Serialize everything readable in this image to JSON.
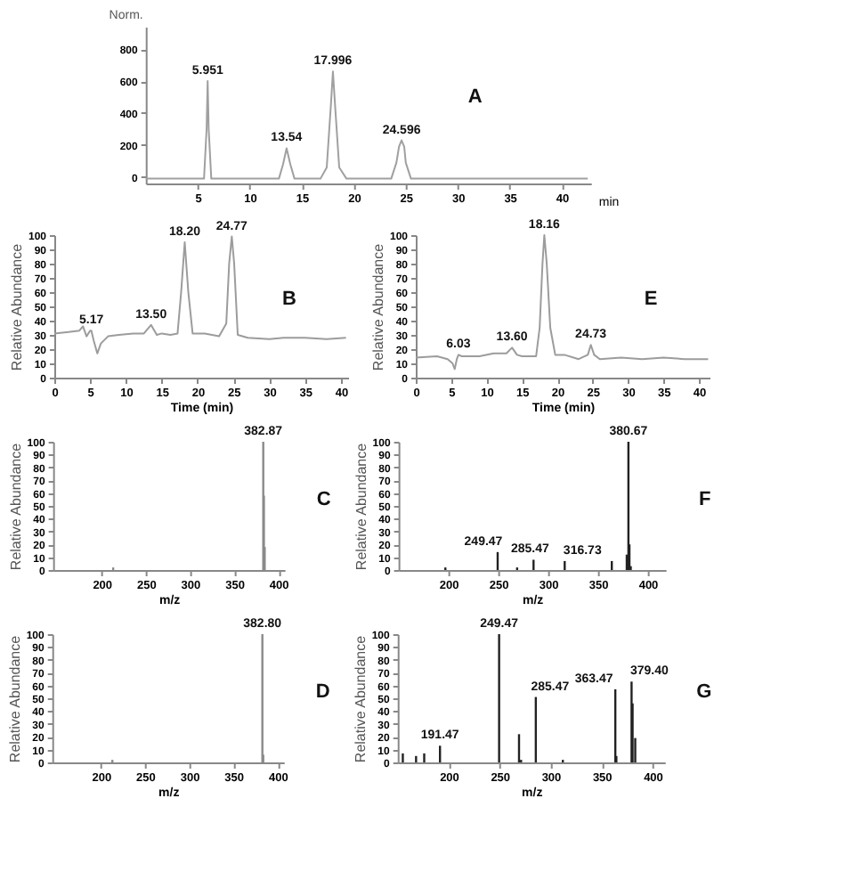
{
  "chart_data": [
    {
      "type": "line",
      "ylabel": "Norm.",
      "xlabel": "min",
      "xlim": [
        0,
        42.8
      ],
      "ylim": [
        -40,
        940
      ],
      "xticks": [
        5,
        10,
        15,
        20,
        25,
        30,
        35,
        40
      ],
      "yticks": [
        0,
        200,
        400,
        600,
        800
      ],
      "grid": false,
      "annotations": [
        "A",
        {
          "text": "5.951",
          "x": 5.951,
          "y": 600
        },
        {
          "text": "13.54",
          "x": 13.54,
          "y": 180
        },
        {
          "text": "17.996",
          "x": 17.996,
          "y": 660
        },
        {
          "text": "24.596",
          "x": 24.596,
          "y": 230
        }
      ],
      "series": [
        {
          "color": "#a0a0a0",
          "x": [
            0,
            5.0,
            5.6,
            5.85,
            5.951,
            6.05,
            6.3,
            7,
            12.8,
            13.2,
            13.54,
            13.9,
            14.3,
            16.8,
            17.4,
            17.8,
            17.996,
            18.2,
            18.6,
            19.3,
            23.6,
            24.1,
            24.35,
            24.596,
            24.85,
            25.0,
            25.5,
            42.5
          ],
          "values": [
            -10,
            -10,
            -10,
            300,
            600,
            300,
            -10,
            -10,
            -10,
            80,
            180,
            80,
            -10,
            -10,
            60,
            450,
            660,
            450,
            60,
            -10,
            -10,
            90,
            190,
            230,
            190,
            90,
            -10,
            -10
          ]
        }
      ]
    },
    {
      "type": "line",
      "ylabel": "Relative Abundance",
      "xlabel": "Time (min)",
      "xlim": [
        0,
        41
      ],
      "ylim": [
        0,
        100
      ],
      "xticks": [
        0,
        5,
        10,
        15,
        20,
        25,
        30,
        35,
        40
      ],
      "yticks": [
        0,
        10,
        20,
        30,
        40,
        50,
        60,
        70,
        80,
        90,
        100
      ],
      "grid": false,
      "annotations": [
        "B",
        {
          "text": "5.17",
          "x": 5.17,
          "y": 33
        },
        {
          "text": "13.50",
          "x": 13.5,
          "y": 37
        },
        {
          "text": "18.20",
          "x": 18.2,
          "y": 95
        },
        {
          "text": "24.77",
          "x": 24.77,
          "y": 99
        }
      ],
      "series": [
        {
          "color": "#9c9c9c",
          "x": [
            0,
            2,
            3.5,
            4.0,
            4.5,
            5.0,
            5.17,
            5.5,
            6.0,
            6.5,
            7.5,
            9,
            11,
            12.5,
            13.5,
            14.3,
            15,
            16.2,
            17.2,
            17.7,
            18.2,
            18.7,
            19.3,
            21,
            23,
            24.0,
            24.4,
            24.77,
            25.1,
            25.6,
            27,
            30,
            32,
            35,
            38,
            40.7
          ],
          "values": [
            31,
            32,
            33,
            36,
            29,
            33,
            33,
            26,
            17,
            24,
            29,
            30,
            31,
            31,
            37,
            30,
            31,
            30,
            31,
            60,
            95,
            60,
            31,
            31,
            29,
            38,
            80,
            99,
            80,
            30,
            28,
            27,
            28,
            28,
            27,
            28
          ]
        }
      ]
    },
    {
      "type": "line",
      "ylabel": "Relative Abundance",
      "xlabel": "Time (min)",
      "xlim": [
        0,
        41.5
      ],
      "ylim": [
        0,
        100
      ],
      "xticks": [
        0,
        5,
        10,
        15,
        20,
        25,
        30,
        35,
        40
      ],
      "yticks": [
        0,
        10,
        20,
        30,
        40,
        50,
        60,
        70,
        80,
        90,
        100
      ],
      "grid": false,
      "annotations": [
        "E",
        {
          "text": "6.03",
          "x": 6.03,
          "y": 16
        },
        {
          "text": "13.60",
          "x": 13.6,
          "y": 21
        },
        {
          "text": "18.16",
          "x": 18.16,
          "y": 100
        },
        {
          "text": "24.73",
          "x": 24.73,
          "y": 23
        }
      ],
      "series": [
        {
          "color": "#9c9c9c",
          "x": [
            0,
            3,
            4.5,
            5.2,
            5.5,
            5.8,
            6.03,
            6.5,
            9,
            11,
            12.8,
            13.6,
            14.3,
            15,
            17,
            17.5,
            17.9,
            18.16,
            18.5,
            19,
            19.7,
            21,
            23,
            24.3,
            24.73,
            25.2,
            26,
            29,
            32,
            35,
            38,
            41.3
          ],
          "values": [
            14,
            15,
            13,
            10,
            6,
            13,
            16,
            15,
            15,
            17,
            17,
            21,
            16,
            15,
            15,
            35,
            80,
            100,
            80,
            35,
            16,
            16,
            13,
            16,
            23,
            16,
            13,
            14,
            13,
            14,
            13,
            13
          ]
        }
      ]
    },
    {
      "type": "bar",
      "ylabel": "Relative Abundance",
      "xlabel": "m/z",
      "xlim": [
        145,
        407
      ],
      "ylim": [
        0,
        100
      ],
      "xticks": [
        200,
        250,
        300,
        350,
        400
      ],
      "yticks": [
        0,
        10,
        20,
        30,
        40,
        50,
        60,
        70,
        80,
        90,
        100
      ],
      "grid": false,
      "annotations": [
        "C",
        {
          "text": "382.87",
          "x": 382.87,
          "y": 100
        }
      ],
      "series": [
        {
          "color": "#8a8a8a",
          "x": [
            213,
            382.87,
            383.6,
            384.5
          ],
          "values": [
            2,
            100,
            58,
            18
          ]
        }
      ]
    },
    {
      "type": "bar",
      "ylabel": "Relative Abundance",
      "xlabel": "m/z",
      "xlim": [
        150,
        418
      ],
      "ylim": [
        0,
        100
      ],
      "xticks": [
        200,
        250,
        300,
        350,
        400
      ],
      "yticks": [
        0,
        10,
        20,
        30,
        40,
        50,
        60,
        70,
        80,
        90,
        100
      ],
      "grid": false,
      "annotations": [
        "F",
        {
          "text": "380.67",
          "x": 380.67,
          "y": 100
        },
        {
          "text": "249.47",
          "x": 249.47,
          "y": 14
        },
        {
          "text": "285.47",
          "x": 285.47,
          "y": 8
        },
        {
          "text": "316.73",
          "x": 316.73,
          "y": 7
        }
      ],
      "series": [
        {
          "color": "#222222",
          "x": [
            197,
            249.47,
            269,
            285.47,
            316.73,
            364,
            379,
            380.67,
            381.7,
            383
          ],
          "values": [
            2,
            14,
            2,
            8,
            7,
            7,
            12,
            100,
            20,
            3
          ]
        }
      ]
    },
    {
      "type": "bar",
      "ylabel": "Relative Abundance",
      "xlabel": "m/z",
      "xlim": [
        145,
        407
      ],
      "ylim": [
        0,
        100
      ],
      "xticks": [
        200,
        250,
        300,
        350,
        400
      ],
      "yticks": [
        0,
        10,
        20,
        30,
        40,
        50,
        60,
        70,
        80,
        90,
        100
      ],
      "grid": false,
      "annotations": [
        "D",
        {
          "text": "382.80",
          "x": 382.8,
          "y": 100
        }
      ],
      "series": [
        {
          "color": "#8a8a8a",
          "x": [
            213,
            382.8,
            383.8
          ],
          "values": [
            2,
            100,
            6
          ]
        }
      ]
    },
    {
      "type": "bar",
      "ylabel": "Relative Abundance",
      "xlabel": "m/z",
      "xlim": [
        150,
        412
      ],
      "ylim": [
        0,
        100
      ],
      "xticks": [
        200,
        250,
        300,
        350,
        400
      ],
      "yticks": [
        0,
        10,
        20,
        30,
        40,
        50,
        60,
        70,
        80,
        90,
        100
      ],
      "grid": false,
      "annotations": [
        "G",
        {
          "text": "249.47",
          "x": 249.47,
          "y": 100
        },
        {
          "text": "191.47",
          "x": 191.47,
          "y": 13
        },
        {
          "text": "285.47",
          "x": 285.47,
          "y": 51
        },
        {
          "text": "363.47",
          "x": 363.47,
          "y": 57
        },
        {
          "text": "379.40",
          "x": 379.4,
          "y": 63
        }
      ],
      "series": [
        {
          "color": "#222222",
          "x": [
            155,
            168,
            176,
            191.47,
            249.47,
            269,
            271,
            285.47,
            312,
            363.47,
            364.5,
            379.4,
            380.4,
            383
          ],
          "values": [
            7,
            5,
            7,
            13,
            100,
            22,
            2,
            51,
            2,
            57,
            5,
            63,
            46,
            19
          ]
        }
      ]
    }
  ]
}
